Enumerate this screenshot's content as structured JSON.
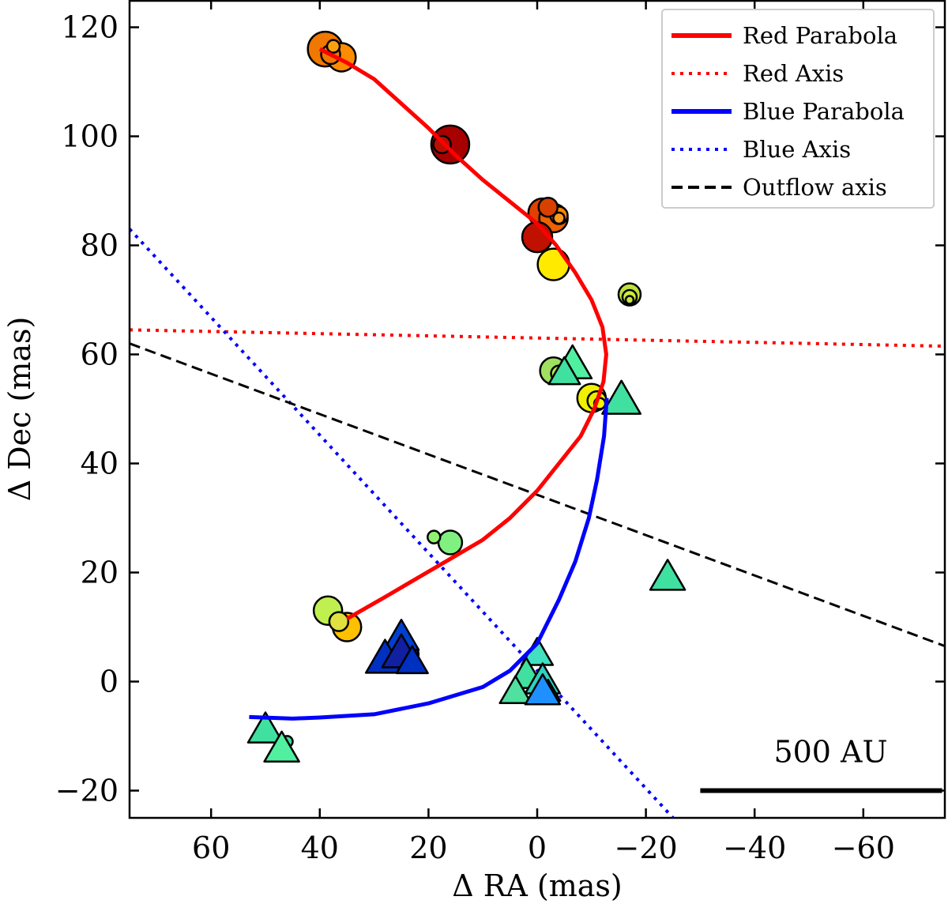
{
  "chart_data": {
    "type": "scatter",
    "xlabel": "Δ RA (mas)",
    "ylabel": "Δ Dec (mas)",
    "xlim": [
      75,
      -75
    ],
    "ylim": [
      -25,
      125
    ],
    "x_ticks": [
      60,
      40,
      20,
      0,
      -20,
      -40,
      -60
    ],
    "x_tick_labels": [
      "60",
      "40",
      "20",
      "0",
      "−20",
      "−40",
      "−60"
    ],
    "y_ticks": [
      120,
      100,
      80,
      60,
      40,
      20,
      0,
      -20
    ],
    "y_tick_labels": [
      "120",
      "100",
      "80",
      "60",
      "40",
      "20",
      "0",
      "−20"
    ],
    "grid": false,
    "legend_position": "top-right",
    "legend": [
      {
        "label": "Red Parabola",
        "color": "#ff0000",
        "style": "solid"
      },
      {
        "label": "Red Axis",
        "color": "#ff0000",
        "style": "dotted"
      },
      {
        "label": "Blue Parabola",
        "color": "#0000ff",
        "style": "solid"
      },
      {
        "label": "Blue Axis",
        "color": "#0000ff",
        "style": "dotted"
      },
      {
        "label": "Outflow axis",
        "color": "#000000",
        "style": "dashed"
      }
    ],
    "red_parabola": [
      [
        40,
        116
      ],
      [
        35,
        113.5
      ],
      [
        30,
        110.5
      ],
      [
        25,
        106
      ],
      [
        20,
        101.5
      ],
      [
        15,
        96.5
      ],
      [
        10,
        92
      ],
      [
        5,
        88
      ],
      [
        0,
        84
      ],
      [
        -3.5,
        80
      ],
      [
        -7,
        75
      ],
      [
        -10,
        70
      ],
      [
        -12,
        65
      ],
      [
        -12.7,
        60
      ],
      [
        -12.2,
        55
      ],
      [
        -10.5,
        50
      ],
      [
        -8,
        45
      ],
      [
        -4,
        40
      ],
      [
        0,
        35
      ],
      [
        5,
        30
      ],
      [
        10,
        26
      ],
      [
        16,
        22.5
      ],
      [
        22,
        19
      ],
      [
        28,
        15.5
      ],
      [
        35,
        11.5
      ]
    ],
    "blue_parabola": [
      [
        53,
        -6.5
      ],
      [
        45,
        -6.8
      ],
      [
        40,
        -6.6
      ],
      [
        30,
        -6
      ],
      [
        20,
        -4
      ],
      [
        10,
        -1
      ],
      [
        5,
        2
      ],
      [
        0,
        7
      ],
      [
        -4,
        15
      ],
      [
        -7,
        22
      ],
      [
        -9.5,
        30
      ],
      [
        -11,
        37
      ],
      [
        -12.3,
        45
      ],
      [
        -12.8,
        52
      ]
    ],
    "red_axis": [
      [
        75,
        64.5
      ],
      [
        -75,
        61.5
      ]
    ],
    "blue_axis": [
      [
        75,
        83
      ],
      [
        -25,
        -25
      ]
    ],
    "outflow_axis": [
      [
        75,
        62
      ],
      [
        -75,
        6.5
      ]
    ],
    "circles": [
      {
        "x": 39,
        "y": 116,
        "size": 22,
        "color": "#f07800"
      },
      {
        "x": 36,
        "y": 114.5,
        "size": 18,
        "color": "#ff8c00"
      },
      {
        "x": 38,
        "y": 115,
        "size": 12,
        "color": "#f07800"
      },
      {
        "x": 37.5,
        "y": 116.5,
        "size": 8,
        "color": "#ffa010"
      },
      {
        "x": 16,
        "y": 98.5,
        "size": 24,
        "color": "#a80000"
      },
      {
        "x": 17.5,
        "y": 98.5,
        "size": 11,
        "color": "#b81000"
      },
      {
        "x": -1,
        "y": 86,
        "size": 18,
        "color": "#e04000"
      },
      {
        "x": -3,
        "y": 85,
        "size": 18,
        "color": "#f06000"
      },
      {
        "x": -4,
        "y": 85.5,
        "size": 11,
        "color": "#ff8800"
      },
      {
        "x": -4,
        "y": 85,
        "size": 7,
        "color": "#ff9a20"
      },
      {
        "x": -2,
        "y": 87,
        "size": 12,
        "color": "#d84000"
      },
      {
        "x": 0,
        "y": 81.5,
        "size": 19,
        "color": "#c01000"
      },
      {
        "x": -3,
        "y": 76.5,
        "size": 20,
        "color": "#ffea00"
      },
      {
        "x": -17,
        "y": 71,
        "size": 14,
        "color": "#c0e040"
      },
      {
        "x": -17,
        "y": 70.5,
        "size": 9,
        "color": "#d0ea40"
      },
      {
        "x": -17,
        "y": 70,
        "size": 5,
        "color": "#c8e640"
      },
      {
        "x": -3,
        "y": 57,
        "size": 17,
        "color": "#a0e060"
      },
      {
        "x": -4,
        "y": 56.5,
        "size": 10,
        "color": "#b8e850"
      },
      {
        "x": -10,
        "y": 52,
        "size": 18,
        "color": "#f0f000"
      },
      {
        "x": -11,
        "y": 51.5,
        "size": 12,
        "color": "#e8f000"
      },
      {
        "x": -11.5,
        "y": 51,
        "size": 7,
        "color": "#f8f800"
      },
      {
        "x": 16,
        "y": 25.5,
        "size": 15,
        "color": "#80f080"
      },
      {
        "x": 19,
        "y": 26.5,
        "size": 8,
        "color": "#90f070"
      },
      {
        "x": 38.5,
        "y": 13,
        "size": 18,
        "color": "#c0f050"
      },
      {
        "x": 35,
        "y": 10,
        "size": 18,
        "color": "#ffc000"
      },
      {
        "x": 36.5,
        "y": 11,
        "size": 12,
        "color": "#e0e040"
      },
      {
        "x": 24,
        "y": 5,
        "size": 15,
        "color": "#101090"
      },
      {
        "x": 46,
        "y": -11,
        "size": 7,
        "color": "#40e0a0"
      }
    ],
    "triangles": [
      {
        "x": -6.5,
        "y": 58,
        "size": 22,
        "color": "#50f0a0"
      },
      {
        "x": -5,
        "y": 56.5,
        "size": 18,
        "color": "#40e0a0"
      },
      {
        "x": -15.5,
        "y": 51.5,
        "size": 22,
        "color": "#40e0a0"
      },
      {
        "x": -24,
        "y": 19,
        "size": 20,
        "color": "#40e0a0"
      },
      {
        "x": 25,
        "y": 8,
        "size": 20,
        "color": "#0040d0"
      },
      {
        "x": 28,
        "y": 4,
        "size": 22,
        "color": "#0030c0"
      },
      {
        "x": 25,
        "y": 5,
        "size": 22,
        "color": "#1020a0"
      },
      {
        "x": 23,
        "y": 3.5,
        "size": 18,
        "color": "#0030c0"
      },
      {
        "x": 0,
        "y": 5,
        "size": 18,
        "color": "#40e0c0"
      },
      {
        "x": 2,
        "y": 1,
        "size": 20,
        "color": "#40e0a0"
      },
      {
        "x": -1,
        "y": 0,
        "size": 20,
        "color": "#30d0c0"
      },
      {
        "x": 4,
        "y": -2,
        "size": 18,
        "color": "#50e0a0"
      },
      {
        "x": -2,
        "y": -2,
        "size": 14,
        "color": "#40e0c0"
      },
      {
        "x": -1,
        "y": -2,
        "size": 20,
        "color": "#1e90ff"
      },
      {
        "x": 50,
        "y": -9,
        "size": 20,
        "color": "#40e0a0"
      },
      {
        "x": 47,
        "y": -12.5,
        "size": 20,
        "color": "#50f0a0"
      }
    ],
    "scale_bar": {
      "label": "500 AU",
      "x_from": -30,
      "x_to": -74.5,
      "y": -20
    }
  }
}
